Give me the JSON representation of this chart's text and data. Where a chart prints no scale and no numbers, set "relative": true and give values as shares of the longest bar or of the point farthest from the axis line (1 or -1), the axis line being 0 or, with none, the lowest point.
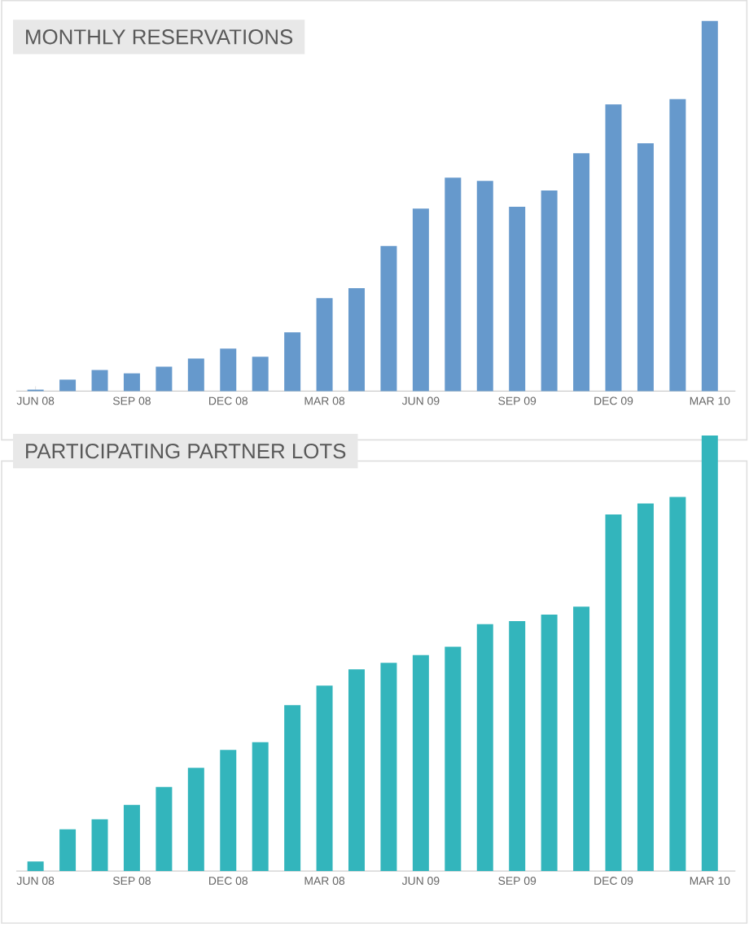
{
  "chart_data": [
    {
      "type": "bar",
      "title": "MONTHLY RESERVATIONS",
      "relative": true,
      "color": "#6699cc",
      "categories": [
        "JUN 08",
        null,
        null,
        "SEP 08",
        null,
        null,
        "DEC 08",
        null,
        null,
        "MAR 08",
        null,
        null,
        "JUN 09",
        null,
        null,
        "SEP 09",
        null,
        null,
        "DEC 09",
        null,
        null,
        "MAR 10"
      ],
      "values": [
        0.004,
        0.031,
        0.057,
        0.048,
        0.066,
        0.088,
        0.115,
        0.093,
        0.159,
        0.251,
        0.278,
        0.392,
        0.493,
        0.577,
        0.568,
        0.498,
        0.542,
        0.643,
        0.775,
        0.67,
        0.789,
        1
      ]
    },
    {
      "type": "bar",
      "title": "PARTICIPATING PARTNER LOTS",
      "relative": true,
      "color": "#33b5bc",
      "categories": [
        "JUN 08",
        null,
        null,
        "SEP 08",
        null,
        null,
        "DEC 08",
        null,
        null,
        "MAR 08",
        null,
        null,
        "JUN 09",
        null,
        null,
        "SEP 09",
        null,
        null,
        "DEC 09",
        null,
        null,
        "MAR 10"
      ],
      "values": [
        0.022,
        0.096,
        0.119,
        0.152,
        0.193,
        0.237,
        0.278,
        0.296,
        0.381,
        0.426,
        0.463,
        0.478,
        0.496,
        0.515,
        0.567,
        0.574,
        0.589,
        0.607,
        0.819,
        0.844,
        0.859,
        1
      ]
    }
  ]
}
